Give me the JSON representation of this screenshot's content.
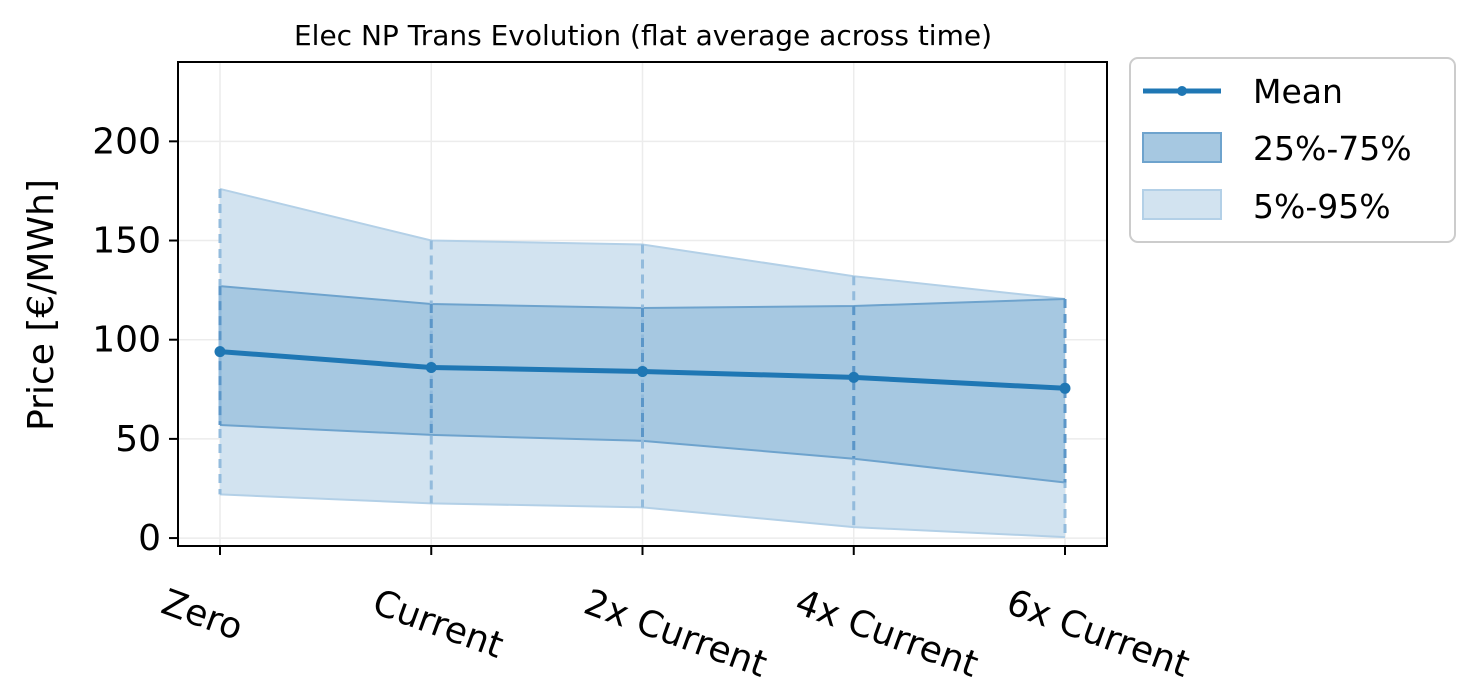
{
  "chart_data": {
    "type": "line",
    "title": "Elec NP Trans Evolution (flat average across time)",
    "xlabel": "",
    "ylabel": "Price [€/MWh]",
    "categories": [
      "Zero",
      "Current",
      "2x Current",
      "4x Current",
      "6x Current"
    ],
    "ylim": [
      -4,
      240
    ],
    "yticks": [
      0,
      50,
      100,
      150,
      200
    ],
    "grid": true,
    "legend_position": "outside-top-right",
    "series": [
      {
        "name": "Mean",
        "values": [
          94,
          86,
          84,
          81,
          75.5
        ]
      }
    ],
    "bands": [
      {
        "name": "25%-75%",
        "lower": [
          57,
          52,
          49,
          40,
          28
        ],
        "upper": [
          127,
          118,
          116,
          117,
          120.5
        ]
      },
      {
        "name": "5%-95%",
        "lower": [
          22,
          17.5,
          15.5,
          5.5,
          0.5
        ],
        "upper": [
          176,
          150,
          148,
          132,
          120.5
        ]
      }
    ],
    "colors": {
      "mean": "#1f77b4",
      "band_inner": "#a6c8e1",
      "band_outer": "#d2e3f0",
      "band_inner_edge": "#6ea3cd",
      "band_outer_edge": "#b3d0e7"
    }
  }
}
